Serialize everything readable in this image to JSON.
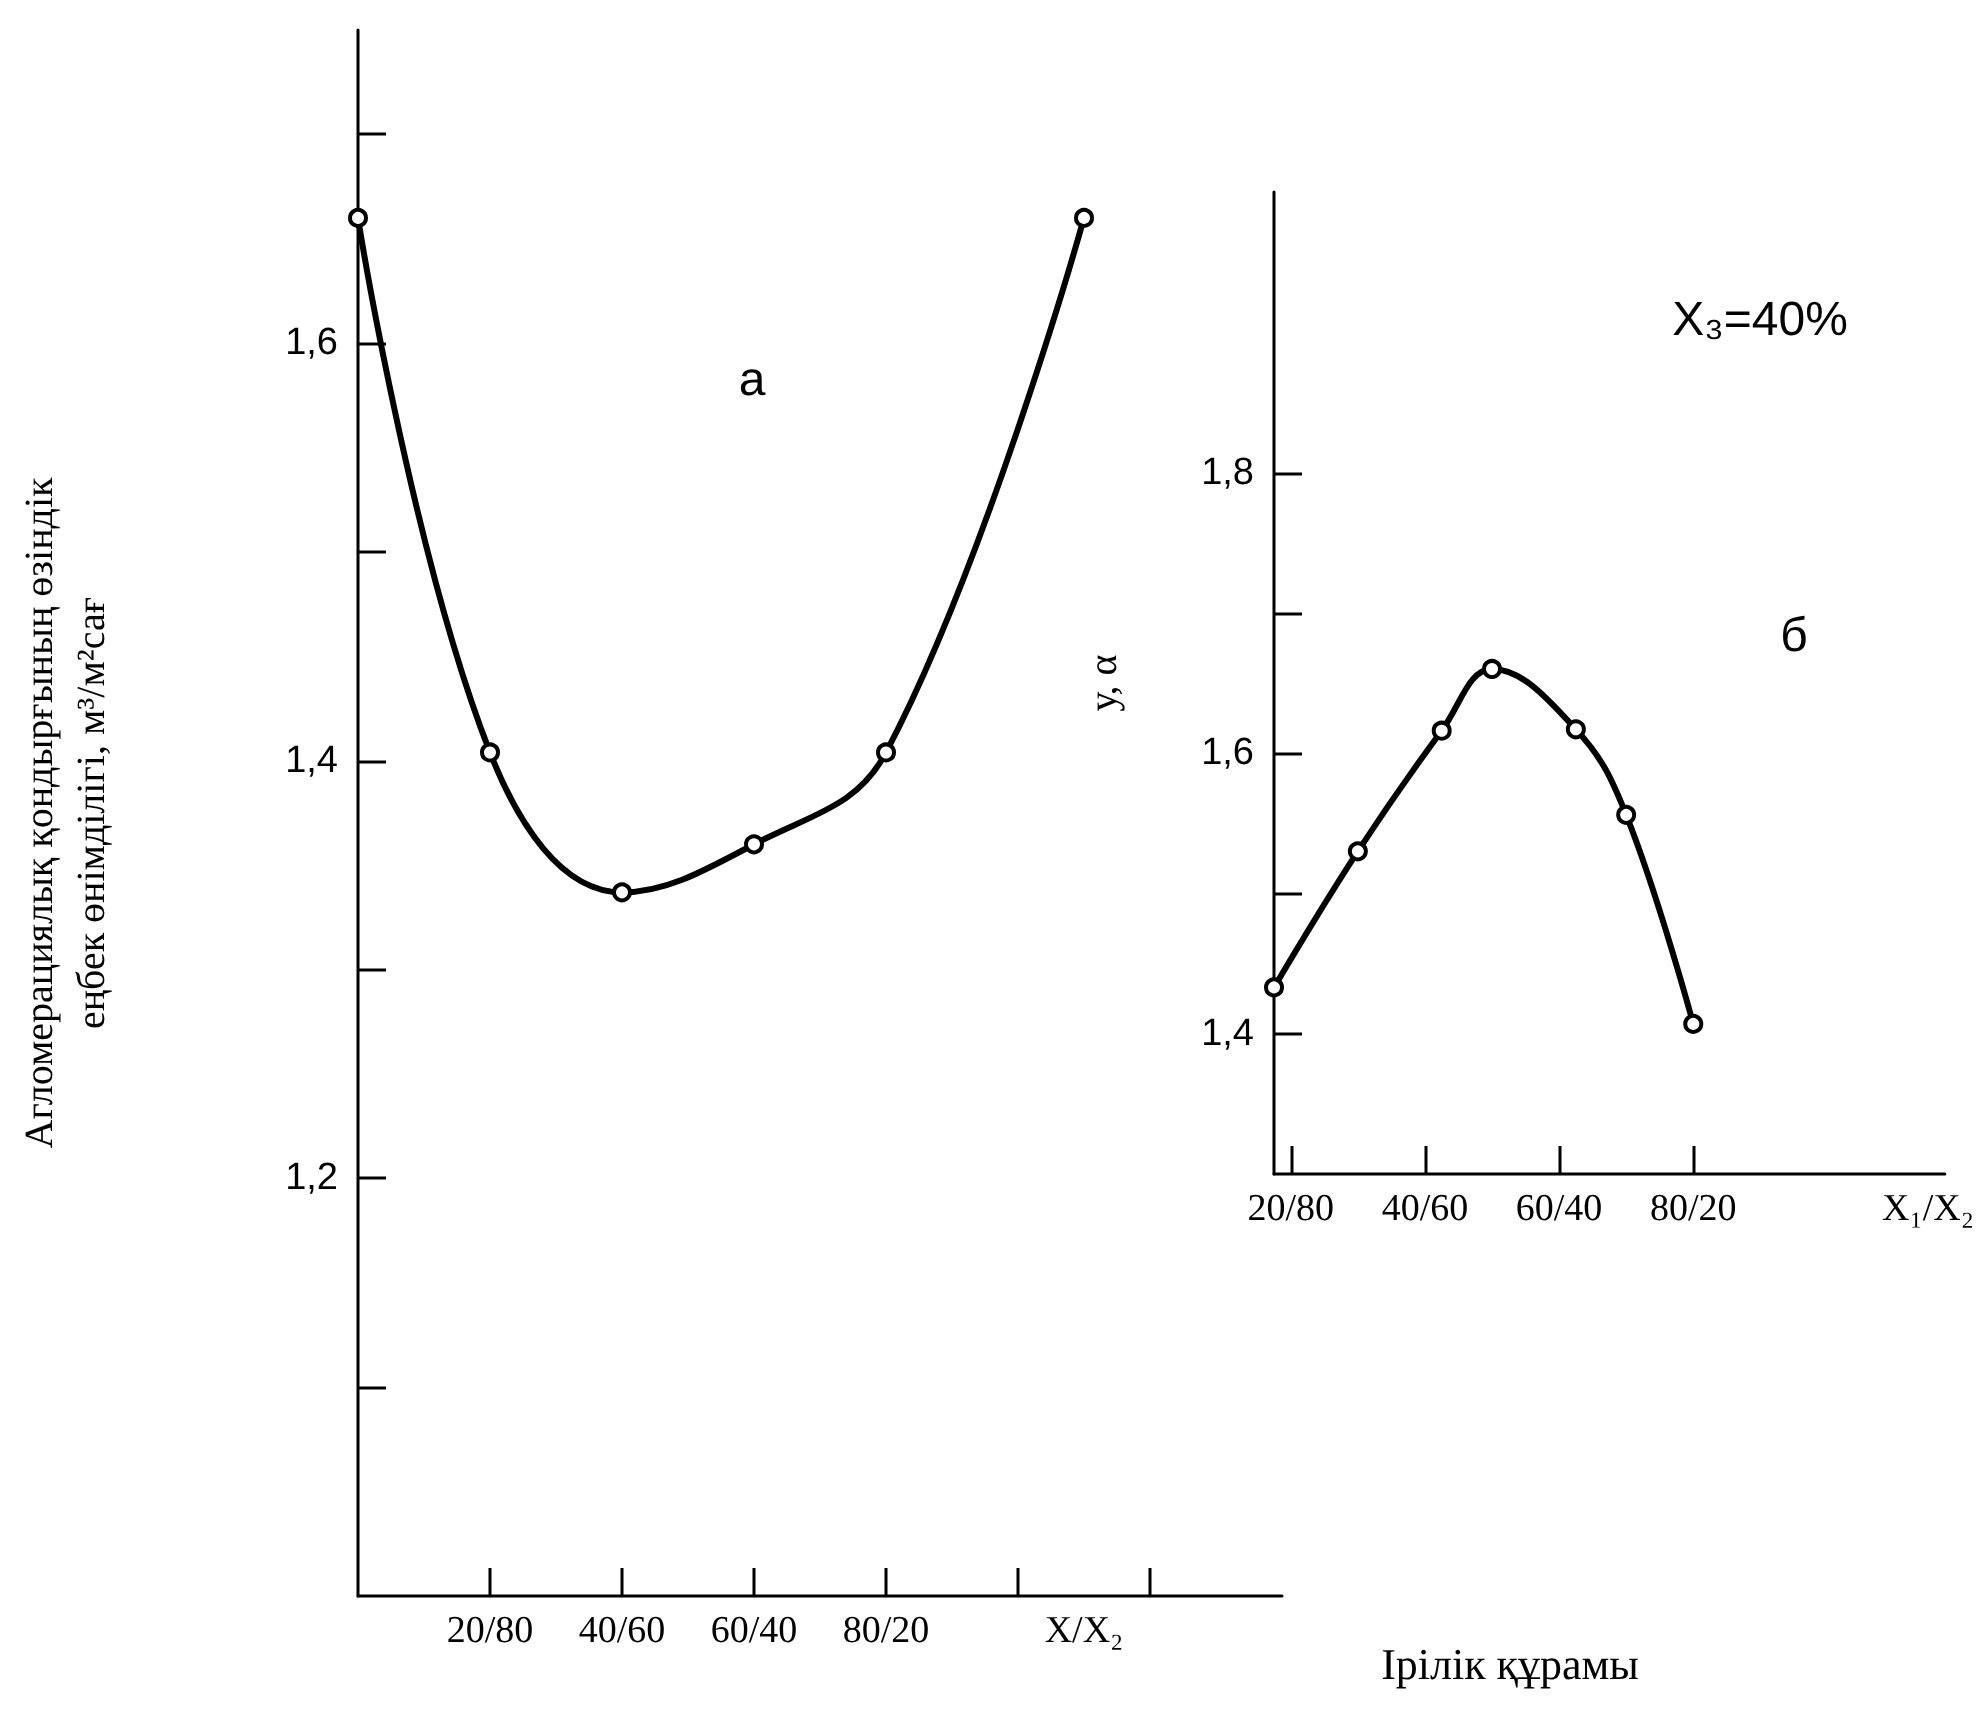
{
  "chart_data": [
    {
      "type": "line",
      "ylabel": "Агломерациялық қондырғының өзіндік\nеңбек өнімділігі, м³/м²сағ",
      "xlabel": "Ірілік құрамы",
      "annotations": [
        "а"
      ],
      "categories": [
        null,
        null,
        "20/80",
        null,
        "40/60",
        null,
        "60/40",
        null,
        "80/20",
        null,
        null,
        "X/X₂",
        null,
        null,
        null
      ],
      "series": [
        {
          "color": "#000000",
          "values": [
            1.66,
            null,
            1.404,
            null,
            1.337,
            null,
            1.36,
            null,
            1.404,
            null,
            null,
            1.66,
            null,
            null,
            null
          ]
        }
      ],
      "ylim": [
        1.0,
        1.75
      ],
      "yticks": [
        {
          "value": 1.1,
          "label": null
        },
        {
          "value": 1.2,
          "label": "1,2"
        },
        {
          "value": 1.3,
          "label": null
        },
        {
          "value": 1.4,
          "label": "1,4"
        },
        {
          "value": 1.5,
          "label": null
        },
        {
          "value": 1.6,
          "label": "1,6"
        },
        {
          "value": 1.7,
          "label": null
        }
      ],
      "marker": "circle",
      "line_style": "solid"
    },
    {
      "type": "line",
      "ylabel": "у, α",
      "annotations": [
        "X₃=40%",
        "б"
      ],
      "categories": [
        null,
        "20/80",
        null,
        null,
        null,
        null,
        null,
        null,
        null,
        "40/60",
        null,
        null,
        null,
        null,
        null,
        null,
        null,
        "60/40",
        null,
        null,
        null,
        null,
        null,
        null,
        null,
        "80/20",
        null,
        null,
        null,
        null,
        null,
        null,
        null,
        null,
        null,
        null,
        null,
        null,
        null,
        "X₁/X₂",
        null
      ],
      "series": [
        {
          "color": "#000000",
          "values": [
            1.433,
            null,
            null,
            null,
            null,
            1.53,
            null,
            null,
            null,
            null,
            1.616,
            null,
            null,
            1.66,
            null,
            null,
            null,
            null,
            1.617,
            null,
            null,
            1.556,
            null,
            null,
            null,
            1.407,
            null,
            null,
            null,
            null,
            null,
            null,
            null,
            null,
            null,
            null,
            null,
            null,
            null,
            null,
            null
          ]
        }
      ],
      "ylim": [
        1.3,
        2.0
      ],
      "yticks": [
        {
          "value": 1.4,
          "label": "1,4"
        },
        {
          "value": 1.5,
          "label": null
        },
        {
          "value": 1.6,
          "label": "1,6"
        },
        {
          "value": 1.7,
          "label": null
        },
        {
          "value": 1.8,
          "label": "1,8"
        }
      ],
      "marker": "circle",
      "line_style": "solid"
    }
  ]
}
